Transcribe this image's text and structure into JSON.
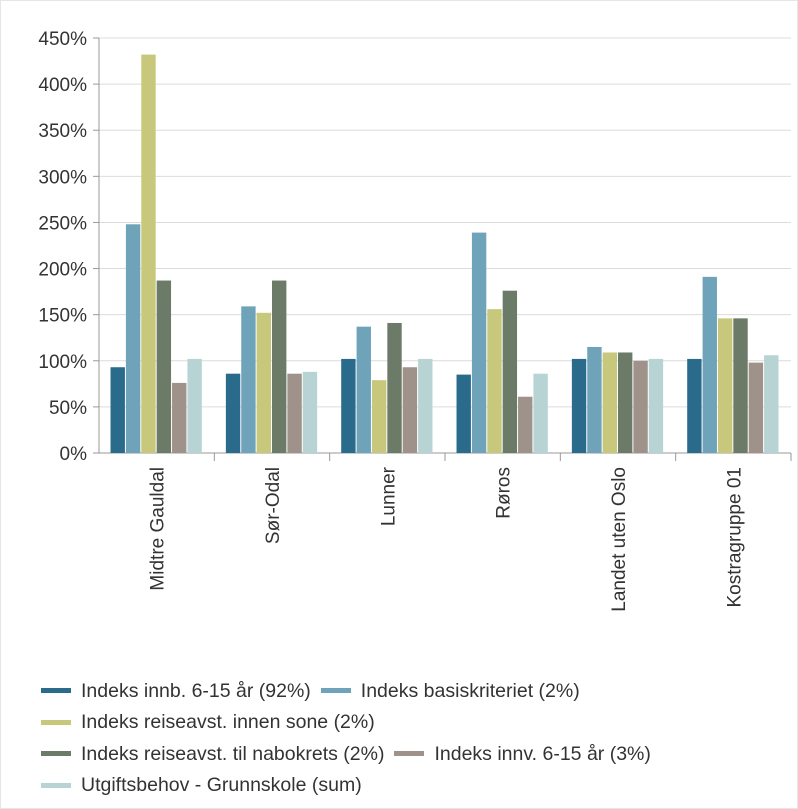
{
  "chart_data": {
    "type": "bar",
    "categories": [
      "Midtre Gauldal",
      "Sør-Odal",
      "Lunner",
      "Røros",
      "Landet uten Oslo",
      "Kostragruppe 01"
    ],
    "yticks": [
      "0%",
      "50%",
      "100%",
      "150%",
      "200%",
      "250%",
      "300%",
      "350%",
      "400%",
      "450%"
    ],
    "ylim": [
      0,
      450
    ],
    "unit": "%",
    "grid": true,
    "legend_position": "bottom",
    "series": [
      {
        "name": "Indeks innb. 6-15 år (92%)",
        "color": "#2a6a8a",
        "values": [
          93,
          86,
          102,
          85,
          102,
          102
        ]
      },
      {
        "name": "Indeks basiskriteriet (2%)",
        "color": "#6fa3b9",
        "values": [
          248,
          159,
          137,
          239,
          115,
          191
        ]
      },
      {
        "name": "Indeks reiseavst. innen sone (2%)",
        "color": "#c8c87d",
        "values": [
          432,
          152,
          79,
          156,
          109,
          146
        ]
      },
      {
        "name": "Indeks reiseavst. til nabokrets (2%)",
        "color": "#6b7b68",
        "values": [
          187,
          187,
          141,
          176,
          109,
          146
        ]
      },
      {
        "name": "Indeks innv. 6-15 år (3%)",
        "color": "#9e928a",
        "values": [
          76,
          86,
          93,
          61,
          100,
          98
        ]
      },
      {
        "name": "Utgiftsbehov - Grunnskole (sum)",
        "color": "#b8d3d3",
        "values": [
          102,
          88,
          102,
          86,
          102,
          106
        ]
      }
    ]
  }
}
